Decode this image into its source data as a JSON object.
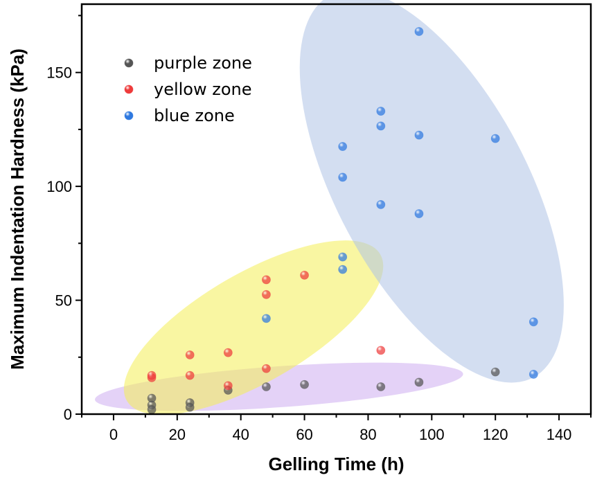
{
  "chart_data": {
    "type": "scatter",
    "xlabel": "Gelling Time (h)",
    "ylabel": "Maximum Indentation Hardness (kPa)",
    "xlim": [
      -10,
      150
    ],
    "ylim": [
      0,
      180
    ],
    "xticks": [
      0,
      20,
      40,
      60,
      80,
      100,
      120,
      140
    ],
    "yticks": [
      0,
      50,
      100,
      150
    ],
    "grid": false,
    "legend_position": "top-left",
    "series": [
      {
        "name": "purple zone",
        "color": "#555555",
        "points": [
          {
            "x": 12,
            "y": 2
          },
          {
            "x": 12,
            "y": 4
          },
          {
            "x": 12,
            "y": 7
          },
          {
            "x": 24,
            "y": 3
          },
          {
            "x": 24,
            "y": 5
          },
          {
            "x": 36,
            "y": 10.5
          },
          {
            "x": 48,
            "y": 12
          },
          {
            "x": 60,
            "y": 13
          },
          {
            "x": 84,
            "y": 12
          },
          {
            "x": 96,
            "y": 14
          },
          {
            "x": 120,
            "y": 18.5
          }
        ]
      },
      {
        "name": "yellow zone",
        "color": "#ee3b3b",
        "points": [
          {
            "x": 12,
            "y": 16
          },
          {
            "x": 12,
            "y": 17
          },
          {
            "x": 24,
            "y": 17
          },
          {
            "x": 24,
            "y": 26
          },
          {
            "x": 36,
            "y": 12.5
          },
          {
            "x": 36,
            "y": 27
          },
          {
            "x": 48,
            "y": 20
          },
          {
            "x": 48,
            "y": 52.5
          },
          {
            "x": 48,
            "y": 59
          },
          {
            "x": 60,
            "y": 61
          },
          {
            "x": 84,
            "y": 28
          }
        ]
      },
      {
        "name": "blue zone",
        "color": "#2f79e0",
        "points": [
          {
            "x": 48,
            "y": 42
          },
          {
            "x": 72,
            "y": 63.5
          },
          {
            "x": 72,
            "y": 69
          },
          {
            "x": 72,
            "y": 104
          },
          {
            "x": 72,
            "y": 117.5
          },
          {
            "x": 84,
            "y": 92
          },
          {
            "x": 84,
            "y": 126.5
          },
          {
            "x": 84,
            "y": 133
          },
          {
            "x": 96,
            "y": 88
          },
          {
            "x": 96,
            "y": 122.5
          },
          {
            "x": 96,
            "y": 168
          },
          {
            "x": 120,
            "y": 121
          },
          {
            "x": 132,
            "y": 40.5
          },
          {
            "x": 132,
            "y": 17.5
          }
        ]
      }
    ],
    "zones": [
      {
        "name": "purple zone",
        "color": "#c9a6f0",
        "opacity": 0.5,
        "center": [
          52,
          12
        ],
        "rx_data": 58,
        "ry_data": 9,
        "angle_deg": -4
      },
      {
        "name": "yellow zone",
        "color": "#f4ee55",
        "opacity": 0.55,
        "center": [
          44,
          38
        ],
        "rx_data": 46,
        "ry_data": 24,
        "angle_deg": -30
      },
      {
        "name": "blue zone",
        "color": "#aec2e6",
        "opacity": 0.55,
        "center": [
          100,
          100
        ],
        "rx_data": 30,
        "ry_data": 95,
        "angle_deg": -28
      }
    ]
  }
}
